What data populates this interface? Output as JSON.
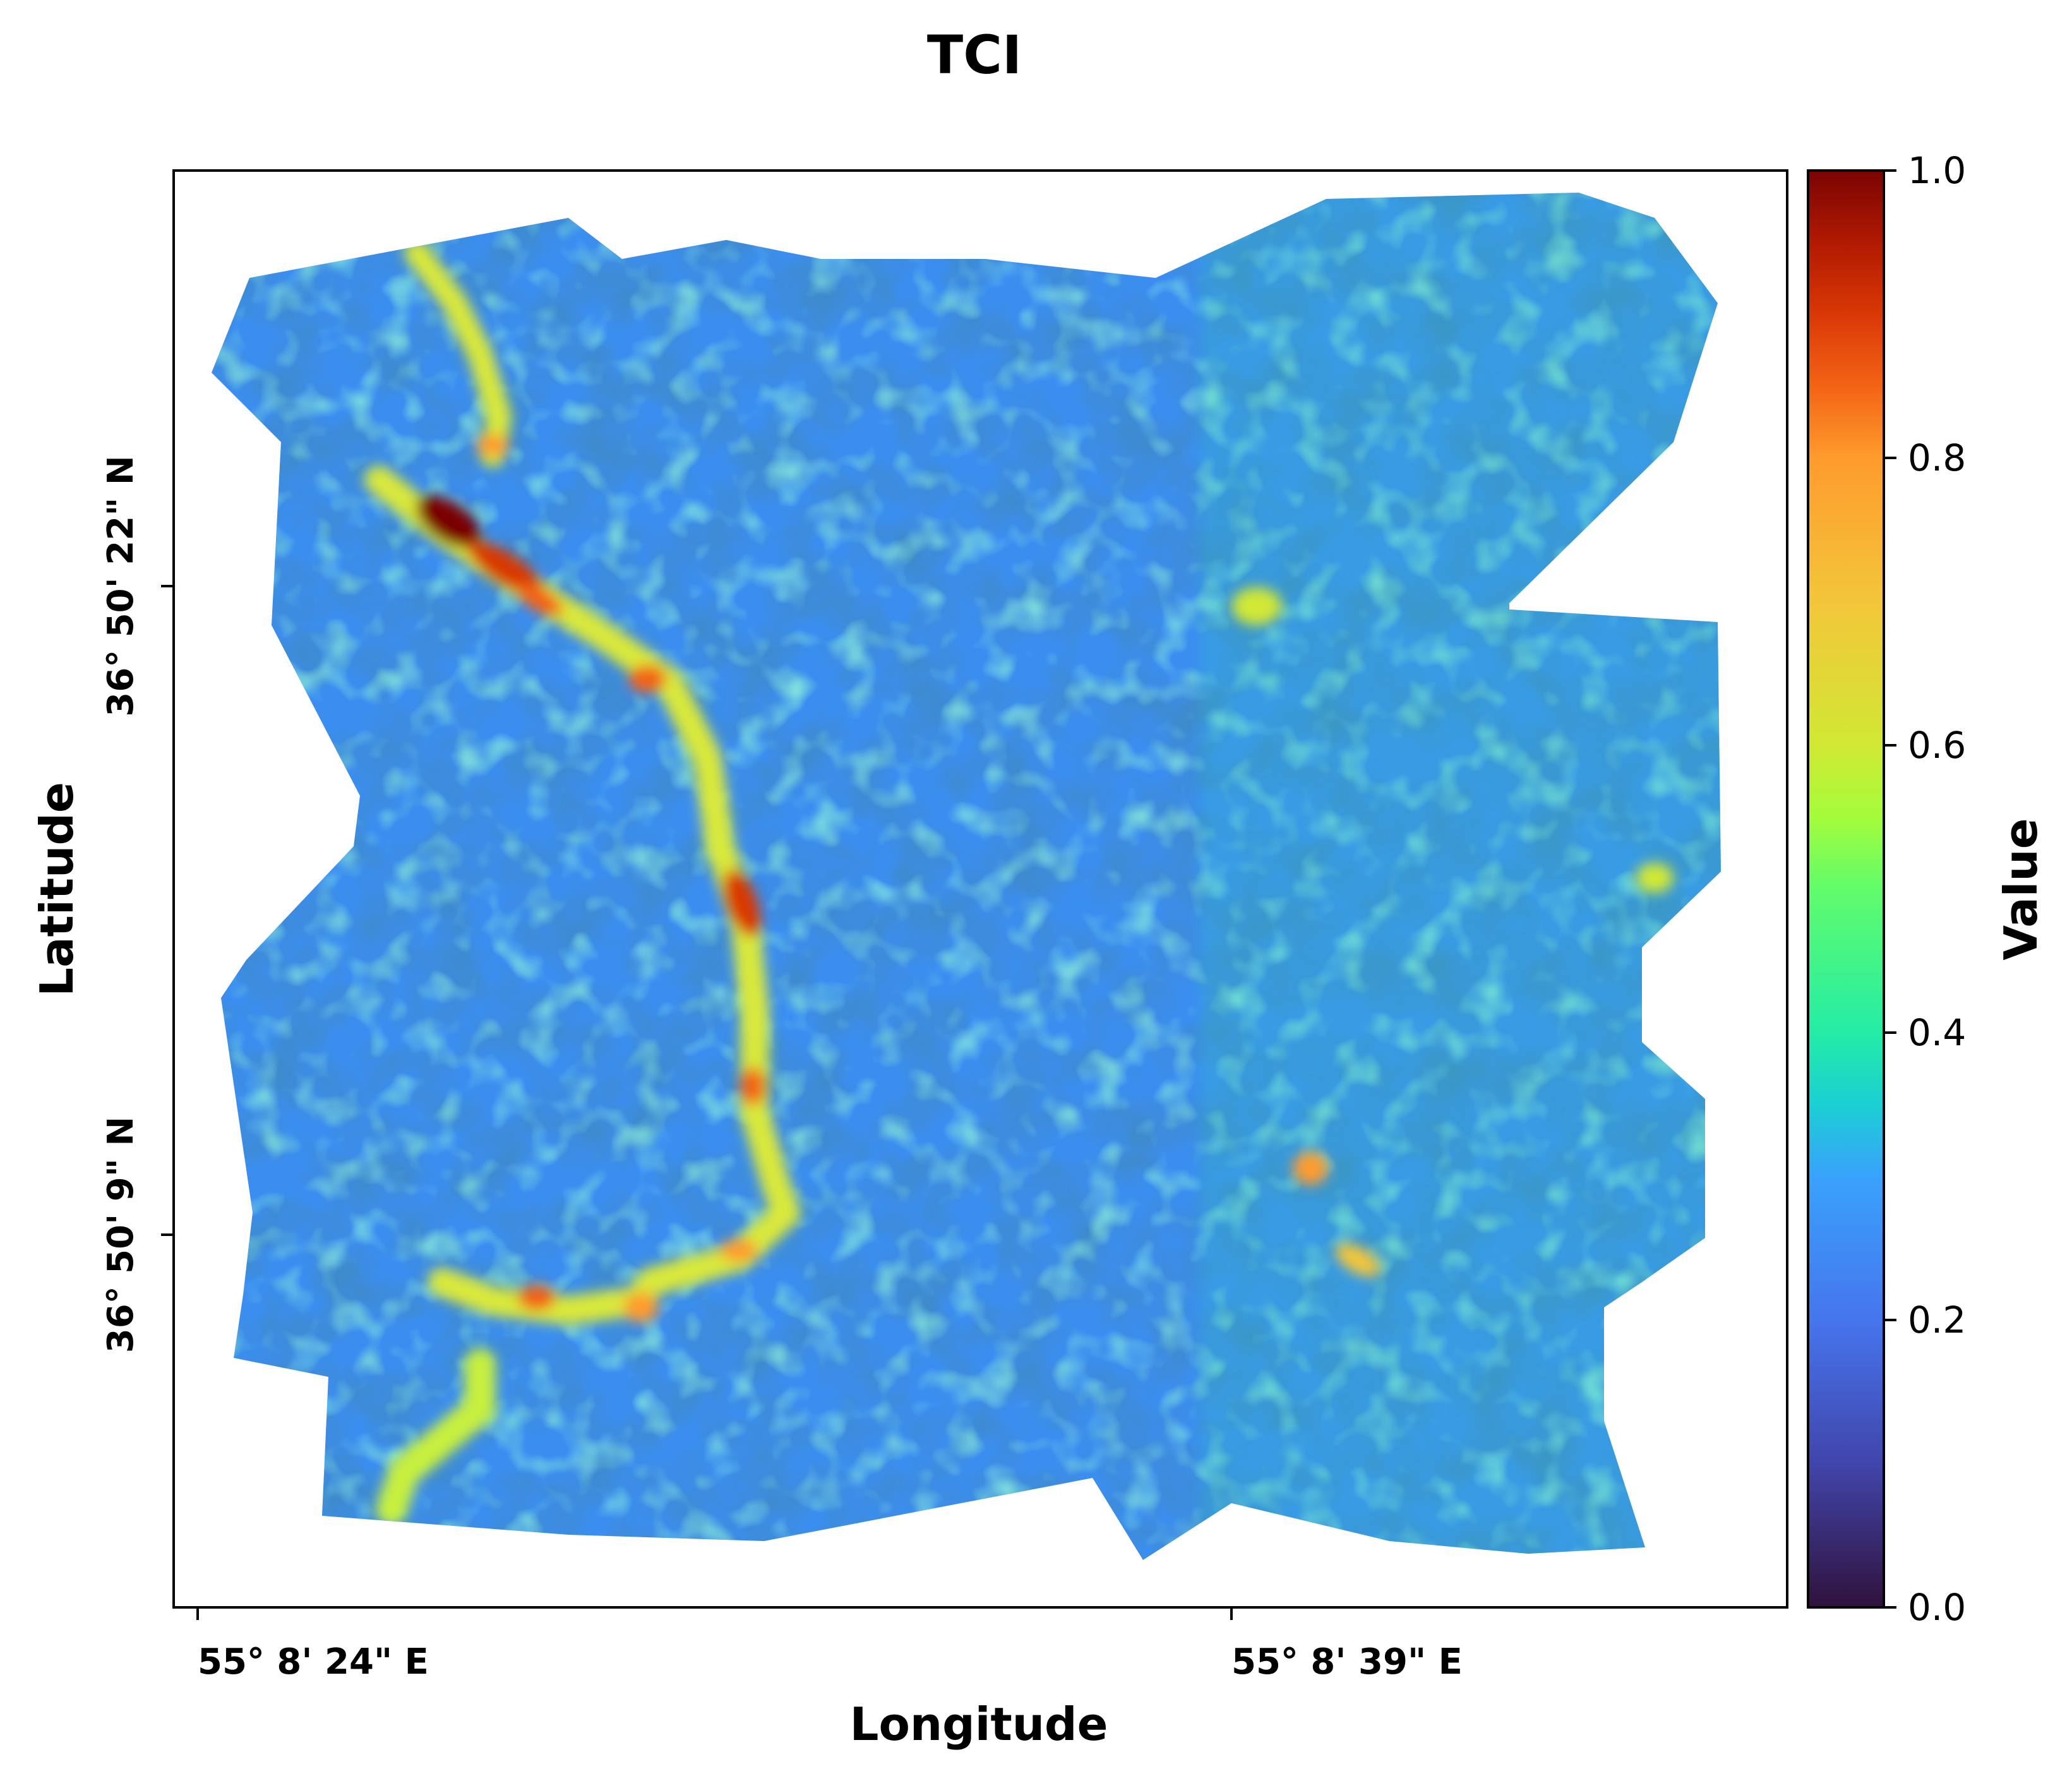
{
  "title": "TCI",
  "axes": {
    "xlabel": "Longitude",
    "ylabel": "Latitude",
    "xticks": [
      "55° 8' 24\" E",
      "55° 8' 39\" E"
    ],
    "yticks": [
      "36° 50' 22\" N",
      "36° 50' 9\" N"
    ]
  },
  "colorbar": {
    "label": "Value",
    "colormap": "turbo",
    "range": [
      0.0,
      1.0
    ],
    "ticks": [
      "0.0",
      "0.2",
      "0.4",
      "0.6",
      "0.8",
      "1.0"
    ]
  },
  "map": {
    "variable": "TCI",
    "features": [
      {
        "type": "stream",
        "description": "high-value channel running from upper-left to lower-left"
      }
    ]
  },
  "colors": {
    "background": "#ffffff",
    "low": "#30123b",
    "mid": "#3ea8f0",
    "high": "#7a0403"
  }
}
